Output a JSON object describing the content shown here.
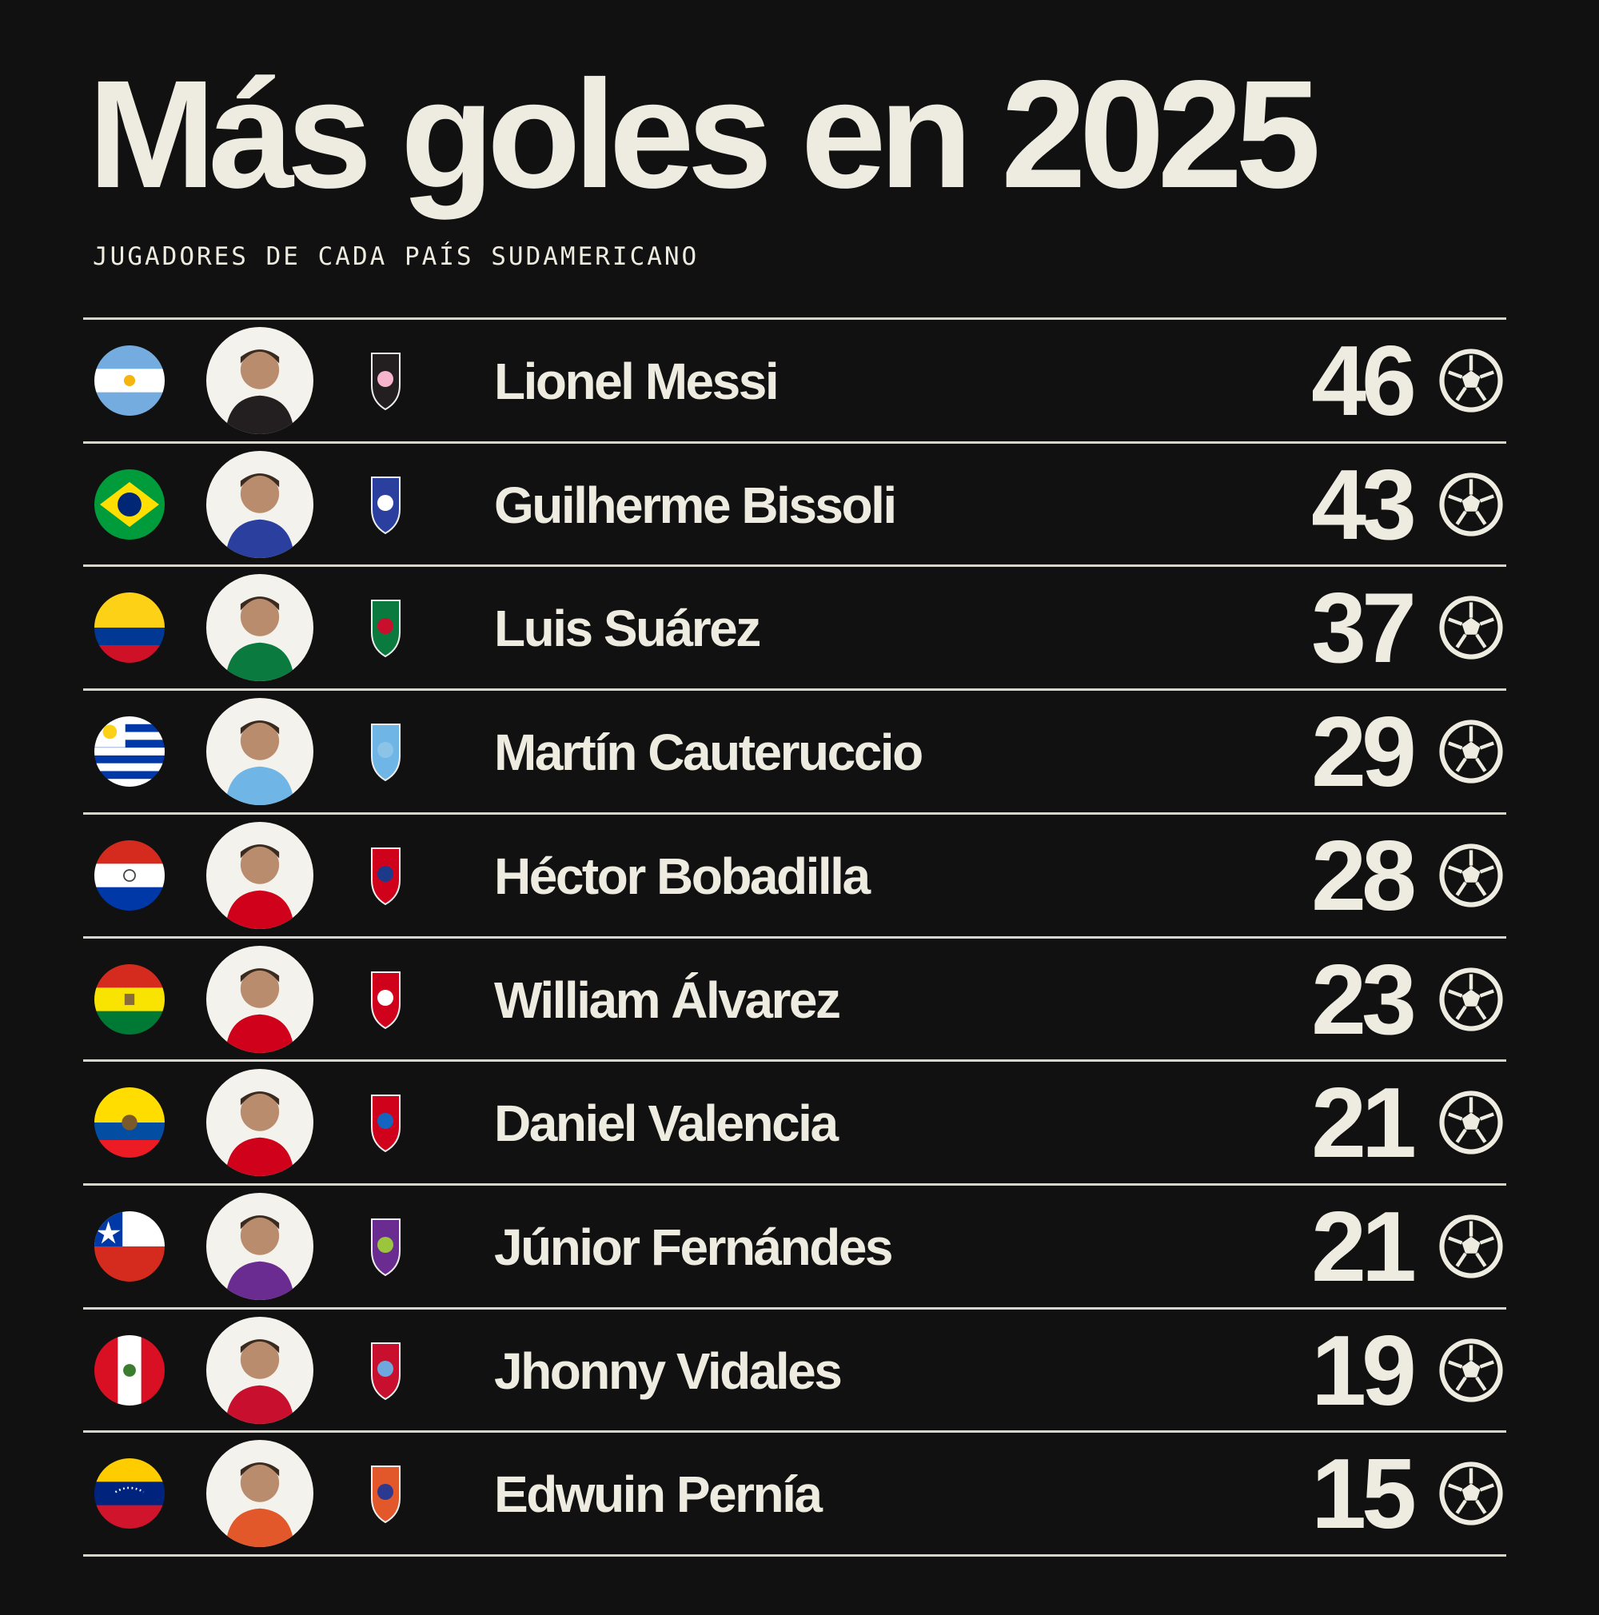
{
  "title": "Más goles en 2025",
  "subtitle": "JUGADORES DE CADA PAÍS SUDAMERICANO",
  "colors": {
    "background": "#111111",
    "text": "#eeece0"
  },
  "players": [
    {
      "name": "Lionel Messi",
      "goals": "46",
      "flag": "argentina-flag",
      "crest": "inter-miami-crest"
    },
    {
      "name": "Guilherme Bissoli",
      "goals": "43",
      "flag": "brazil-flag",
      "crest": "buriram-united-crest"
    },
    {
      "name": "Luis Suárez",
      "goals": "37",
      "flag": "colombia-flag",
      "crest": "sporting-cp-and-almeria-crests"
    },
    {
      "name": "Martín Cauteruccio",
      "goals": "29",
      "flag": "uruguay-flag",
      "crest": "bolivar-and-sporting-cristal-crests"
    },
    {
      "name": "Héctor Bobadilla",
      "goals": "28",
      "flag": "paraguay-flag",
      "crest": "club-atletico-river-and-jorge-wilstermann-crests"
    },
    {
      "name": "William Álvarez",
      "goals": "23",
      "flag": "bolivia-flag",
      "crest": "nacional-potosi-crest"
    },
    {
      "name": "Daniel Valencia",
      "goals": "21",
      "flag": "ecuador-flag",
      "crest": "club-crest"
    },
    {
      "name": "Júnior Fernándes",
      "goals": "21",
      "flag": "chile-flag",
      "crest": "deportes-concepcion-and-club-crests"
    },
    {
      "name": "Jhonny Vidales",
      "goals": "19",
      "flag": "peru-flag",
      "crest": "melgar-and-adt-crests"
    },
    {
      "name": "Edwuin Pernía",
      "goals": "15",
      "flag": "venezuela-flag",
      "crest": "academia-puerto-cabello-crest"
    }
  ]
}
